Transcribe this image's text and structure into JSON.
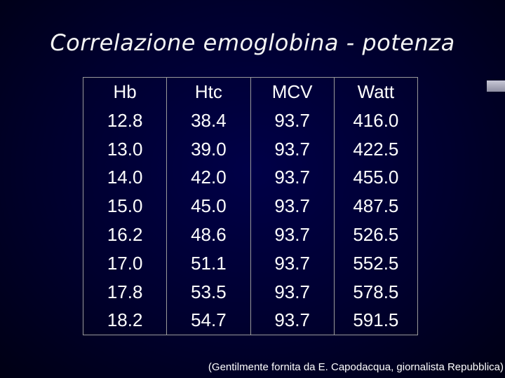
{
  "title": "Correlazione emoglobina - potenza",
  "table": {
    "headers": [
      "Hb",
      "Htc",
      "MCV",
      "Watt"
    ],
    "rows": [
      [
        "12.8",
        "38.4",
        "93.7",
        "416.0"
      ],
      [
        "13.0",
        "39.0",
        "93.7",
        "422.5"
      ],
      [
        "14.0",
        "42.0",
        "93.7",
        "455.0"
      ],
      [
        "15.0",
        "45.0",
        "93.7",
        "487.5"
      ],
      [
        "16.2",
        "48.6",
        "93.7",
        "526.5"
      ],
      [
        "17.0",
        "51.1",
        "93.7",
        "552.5"
      ],
      [
        "17.8",
        "53.5",
        "93.7",
        "578.5"
      ],
      [
        "18.2",
        "54.7",
        "93.7",
        "591.5"
      ]
    ]
  },
  "credit": "(Gentilmente fornita da E. Capodacqua, giornalista Repubblica)",
  "colors": {
    "background": "#00002e",
    "text": "#ffffff",
    "grid": "#9a9a9a"
  }
}
